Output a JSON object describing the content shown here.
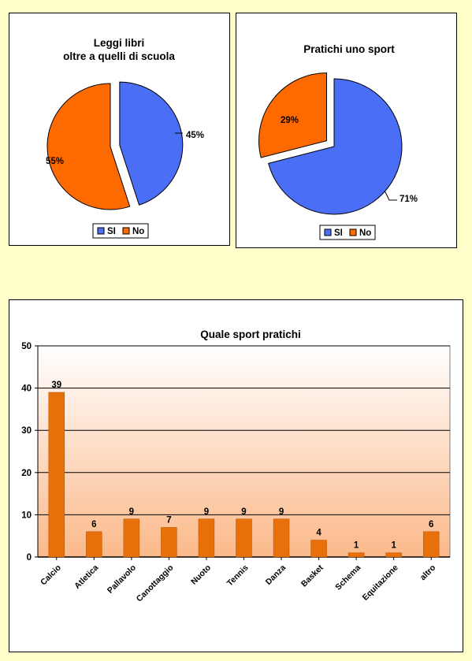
{
  "chart_data": [
    {
      "type": "pie",
      "title_lines": [
        "Leggi libri",
        "oltre a quelli di scuola"
      ],
      "categories": [
        "SI",
        "No"
      ],
      "values": [
        45,
        55
      ],
      "labels": [
        "45%",
        "55%"
      ],
      "exploded": "SI",
      "colors": [
        "#4a6ef5",
        "#ff6a00"
      ],
      "legend": "bottom"
    },
    {
      "type": "pie",
      "title_lines": [
        "Pratichi uno sport"
      ],
      "categories": [
        "SI",
        "No"
      ],
      "values": [
        71,
        29
      ],
      "labels": [
        "71%",
        "29%"
      ],
      "exploded": "No",
      "colors": [
        "#4a6ef5",
        "#ff6a00"
      ],
      "legend": "bottom"
    },
    {
      "type": "bar",
      "title": "Quale sport pratichi",
      "categories": [
        "Calcio",
        "Atletica",
        "Pallavolo",
        "Canottaggio",
        "Nuoto",
        "Tennis",
        "Danza",
        "Basket",
        "Schema",
        "Equitazione",
        "altro"
      ],
      "values": [
        39,
        6,
        9,
        7,
        9,
        9,
        9,
        4,
        1,
        1,
        6
      ],
      "data_labels": [
        "39",
        "6",
        "9",
        "7",
        "9",
        "9",
        "9",
        "4",
        "1",
        "1",
        "6"
      ],
      "ylim": [
        0,
        50
      ],
      "yticks": [
        "0",
        "10",
        "20",
        "30",
        "40",
        "50"
      ],
      "grid": true,
      "bar_color": "#e8700a",
      "xlabel": "",
      "ylabel": ""
    }
  ]
}
